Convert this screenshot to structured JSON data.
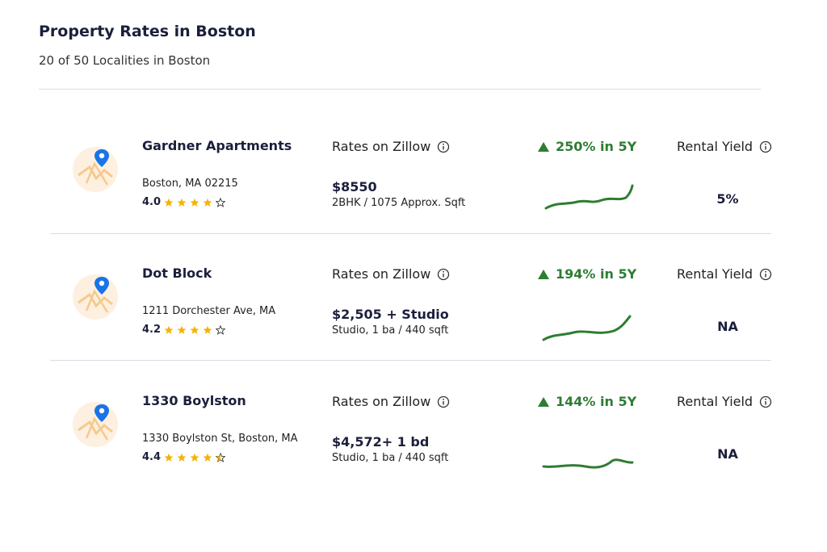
{
  "header": {
    "title": "Property Rates in Boston",
    "subtitle": "20 of 50 Localities in Boston"
  },
  "listings": [
    {
      "name": "Gardner Apartments",
      "address": "Boston, MA 02215",
      "rating": "4.0",
      "rates_label": "Rates on Zillow",
      "price": "$8550",
      "details": "2BHK / 1075 Approx. Sqft",
      "growth": "250% in 5Y",
      "yield_label": "Rental Yield",
      "yield": "5%"
    },
    {
      "name": "Dot Block",
      "address": "1211 Dorchester Ave, MA",
      "rating": "4.2",
      "rates_label": "Rates on Zillow",
      "price": "$2,505 + Studio",
      "details": "Studio, 1 ba / 440 sqft",
      "growth": "194% in 5Y",
      "yield_label": "Rental Yield",
      "yield": "NA"
    },
    {
      "name": "1330 Boylston",
      "address": "1330 Boylston St, Boston, MA",
      "rating": "4.4",
      "rates_label": "Rates on Zillow",
      "price": "$4,572+ 1 bd",
      "details": "Studio, 1 ba / 440 sqft",
      "growth": "144% in 5Y",
      "yield_label": "Rental Yield",
      "yield": "NA"
    }
  ]
}
